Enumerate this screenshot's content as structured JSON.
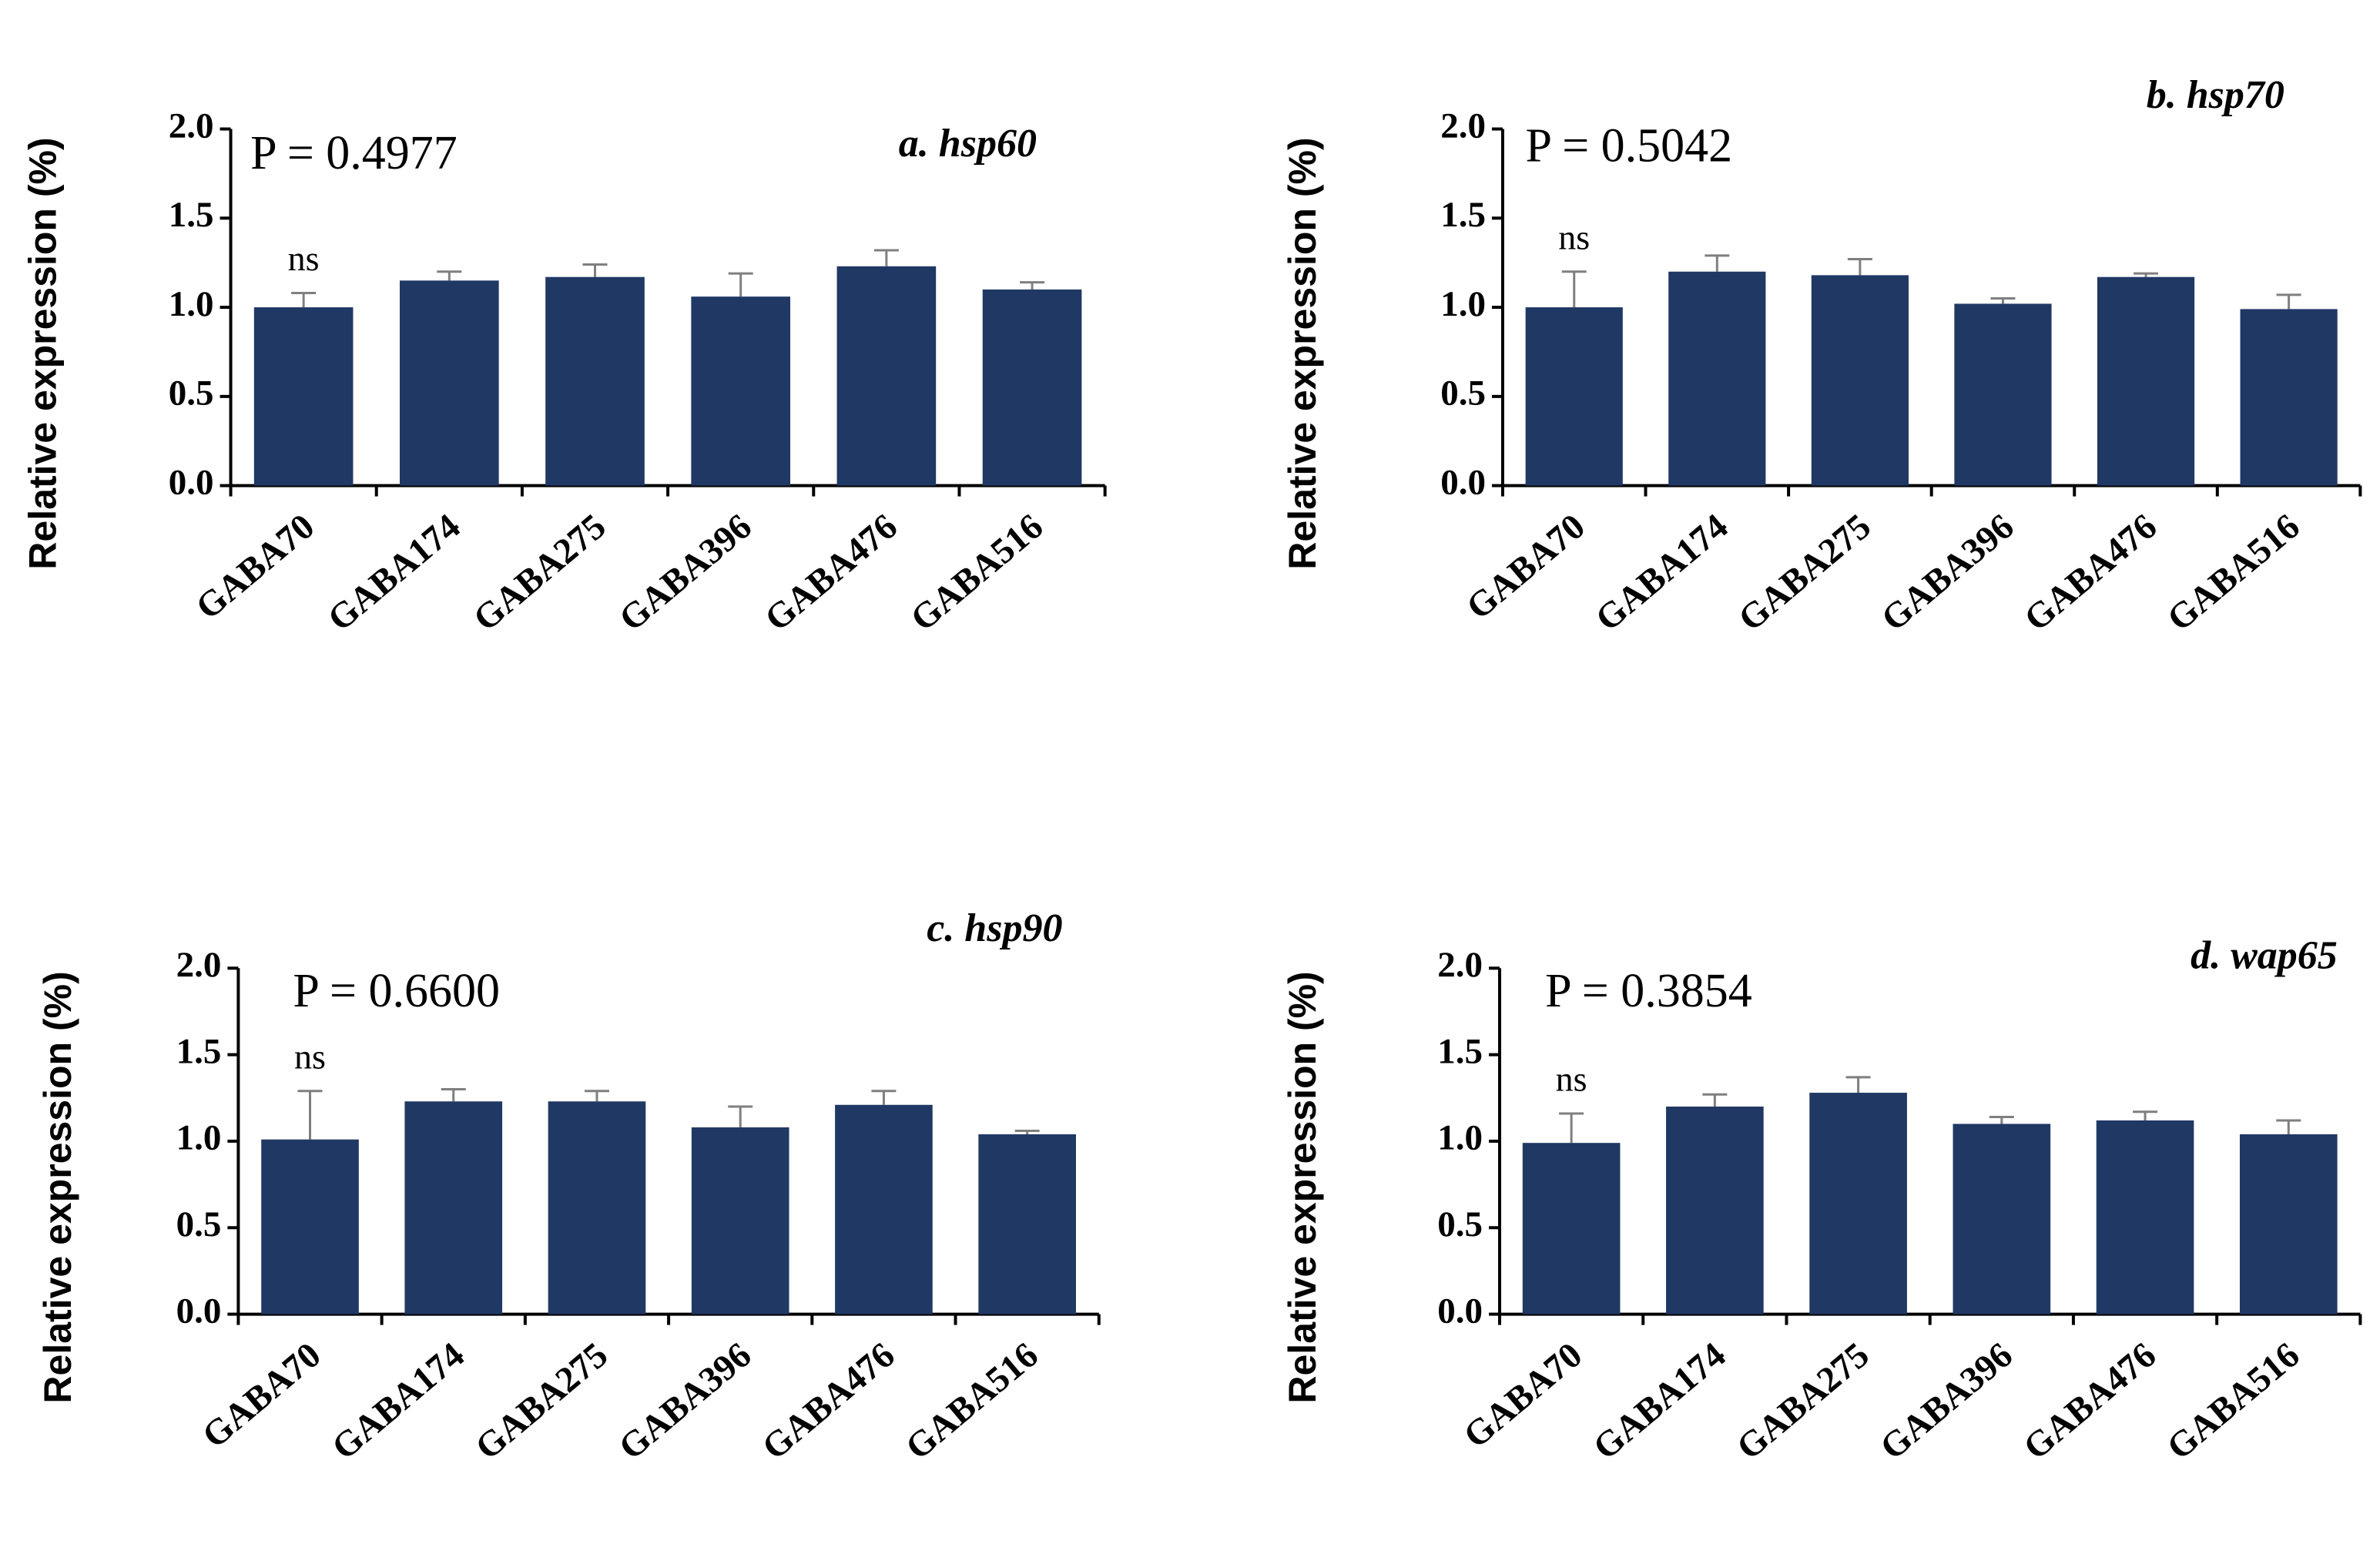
{
  "chart_data": [
    {
      "type": "bar",
      "title": "a. hsp60",
      "annotation": "P = 0.4977",
      "significance": "ns",
      "y_label": "Relative expression (%)",
      "categories": [
        "GABA70",
        "GABA174",
        "GABA275",
        "GABA396",
        "GABA476",
        "GABA516"
      ],
      "values": [
        1.0,
        1.15,
        1.17,
        1.06,
        1.23,
        1.1
      ],
      "errors": [
        0.08,
        0.05,
        0.07,
        0.13,
        0.09,
        0.04
      ],
      "color": "#203864",
      "ylim": [
        0,
        2
      ],
      "yticks": [
        {
          "value": 0,
          "label": "0.0"
        },
        0.5,
        {
          "value": 1,
          "label": "1.0"
        },
        1.5,
        {
          "value": 2,
          "label": "2.0"
        }
      ]
    },
    {
      "type": "bar",
      "title": "b. hsp70",
      "annotation": "P = 0.5042",
      "significance": "ns",
      "y_label": "Relative expression (%)",
      "categories": [
        "GABA70",
        "GABA174",
        "GABA275",
        "GABA396",
        "GABA476",
        "GABA516"
      ],
      "values": [
        1.0,
        1.2,
        1.18,
        1.02,
        1.17,
        0.99
      ],
      "errors": [
        0.2,
        0.09,
        0.09,
        0.03,
        0.02,
        0.08
      ],
      "color": "#203864",
      "ylim": [
        0,
        2
      ],
      "yticks": [
        {
          "value": 0,
          "label": "0.0"
        },
        0.5,
        {
          "value": 1,
          "label": "1.0"
        },
        1.5,
        {
          "value": 2,
          "label": "2.0"
        }
      ]
    },
    {
      "type": "bar",
      "title": "c. hsp90",
      "annotation": "P = 0.6600",
      "significance": "ns",
      "y_label": "Relative  expression (%)",
      "categories": [
        "GABA70",
        "GABA174",
        "GABA275",
        "GABA396",
        "GABA476",
        "GABA516"
      ],
      "values": [
        1.01,
        1.23,
        1.23,
        1.08,
        1.21,
        1.04
      ],
      "errors": [
        0.28,
        0.07,
        0.06,
        0.12,
        0.08,
        0.02
      ],
      "color": "#203864",
      "ylim": [
        0,
        2
      ],
      "yticks": [
        {
          "value": 0,
          "label": "0.0"
        },
        0.5,
        {
          "value": 1,
          "label": "1.0"
        },
        1.5,
        {
          "value": 2,
          "label": "2.0"
        }
      ]
    },
    {
      "type": "bar",
      "title": "d. wap65",
      "annotation": "P = 0.3854",
      "significance": "ns",
      "y_label": "Relative expression (%)",
      "categories": [
        "GABA70",
        "GABA174",
        "GABA275",
        "GABA396",
        "GABA476",
        "GABA516"
      ],
      "values": [
        0.99,
        1.2,
        1.28,
        1.1,
        1.12,
        1.04
      ],
      "errors": [
        0.17,
        0.07,
        0.09,
        0.04,
        0.05,
        0.08
      ],
      "color": "#203864",
      "ylim": [
        0,
        2
      ],
      "yticks": [
        {
          "value": 0,
          "label": "0.0"
        },
        0.5,
        {
          "value": 1,
          "label": "1.0"
        },
        1.5,
        {
          "value": 2,
          "label": "2.0"
        }
      ]
    }
  ]
}
